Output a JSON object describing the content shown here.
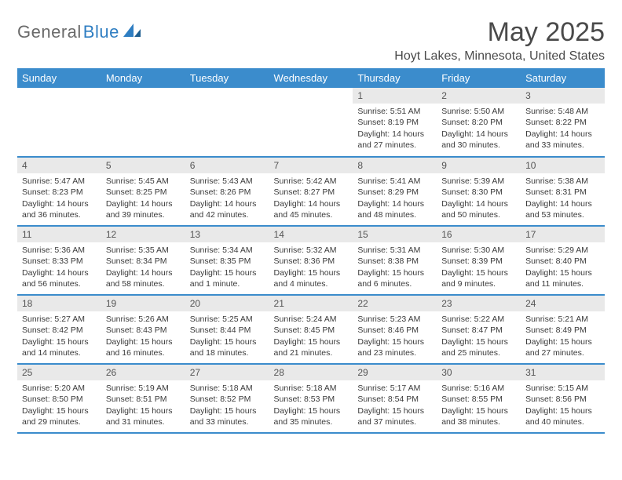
{
  "brand": {
    "part1": "General",
    "part2": "Blue"
  },
  "title": "May 2025",
  "location": "Hoyt Lakes, Minnesota, United States",
  "colors": {
    "header_bg": "#3b8ccc",
    "header_text": "#ffffff",
    "daynum_bg": "#e9e9e9",
    "text": "#3a3a3a",
    "brand_gray": "#6a6a6a",
    "brand_blue": "#2f7ec2",
    "page_bg": "#ffffff"
  },
  "weekdays": [
    "Sunday",
    "Monday",
    "Tuesday",
    "Wednesday",
    "Thursday",
    "Friday",
    "Saturday"
  ],
  "weeks": [
    [
      {
        "empty": true
      },
      {
        "empty": true
      },
      {
        "empty": true
      },
      {
        "empty": true
      },
      {
        "n": "1",
        "sr": "5:51 AM",
        "ss": "8:19 PM",
        "dl": "14 hours and 27 minutes."
      },
      {
        "n": "2",
        "sr": "5:50 AM",
        "ss": "8:20 PM",
        "dl": "14 hours and 30 minutes."
      },
      {
        "n": "3",
        "sr": "5:48 AM",
        "ss": "8:22 PM",
        "dl": "14 hours and 33 minutes."
      }
    ],
    [
      {
        "n": "4",
        "sr": "5:47 AM",
        "ss": "8:23 PM",
        "dl": "14 hours and 36 minutes."
      },
      {
        "n": "5",
        "sr": "5:45 AM",
        "ss": "8:25 PM",
        "dl": "14 hours and 39 minutes."
      },
      {
        "n": "6",
        "sr": "5:43 AM",
        "ss": "8:26 PM",
        "dl": "14 hours and 42 minutes."
      },
      {
        "n": "7",
        "sr": "5:42 AM",
        "ss": "8:27 PM",
        "dl": "14 hours and 45 minutes."
      },
      {
        "n": "8",
        "sr": "5:41 AM",
        "ss": "8:29 PM",
        "dl": "14 hours and 48 minutes."
      },
      {
        "n": "9",
        "sr": "5:39 AM",
        "ss": "8:30 PM",
        "dl": "14 hours and 50 minutes."
      },
      {
        "n": "10",
        "sr": "5:38 AM",
        "ss": "8:31 PM",
        "dl": "14 hours and 53 minutes."
      }
    ],
    [
      {
        "n": "11",
        "sr": "5:36 AM",
        "ss": "8:33 PM",
        "dl": "14 hours and 56 minutes."
      },
      {
        "n": "12",
        "sr": "5:35 AM",
        "ss": "8:34 PM",
        "dl": "14 hours and 58 minutes."
      },
      {
        "n": "13",
        "sr": "5:34 AM",
        "ss": "8:35 PM",
        "dl": "15 hours and 1 minute."
      },
      {
        "n": "14",
        "sr": "5:32 AM",
        "ss": "8:36 PM",
        "dl": "15 hours and 4 minutes."
      },
      {
        "n": "15",
        "sr": "5:31 AM",
        "ss": "8:38 PM",
        "dl": "15 hours and 6 minutes."
      },
      {
        "n": "16",
        "sr": "5:30 AM",
        "ss": "8:39 PM",
        "dl": "15 hours and 9 minutes."
      },
      {
        "n": "17",
        "sr": "5:29 AM",
        "ss": "8:40 PM",
        "dl": "15 hours and 11 minutes."
      }
    ],
    [
      {
        "n": "18",
        "sr": "5:27 AM",
        "ss": "8:42 PM",
        "dl": "15 hours and 14 minutes."
      },
      {
        "n": "19",
        "sr": "5:26 AM",
        "ss": "8:43 PM",
        "dl": "15 hours and 16 minutes."
      },
      {
        "n": "20",
        "sr": "5:25 AM",
        "ss": "8:44 PM",
        "dl": "15 hours and 18 minutes."
      },
      {
        "n": "21",
        "sr": "5:24 AM",
        "ss": "8:45 PM",
        "dl": "15 hours and 21 minutes."
      },
      {
        "n": "22",
        "sr": "5:23 AM",
        "ss": "8:46 PM",
        "dl": "15 hours and 23 minutes."
      },
      {
        "n": "23",
        "sr": "5:22 AM",
        "ss": "8:47 PM",
        "dl": "15 hours and 25 minutes."
      },
      {
        "n": "24",
        "sr": "5:21 AM",
        "ss": "8:49 PM",
        "dl": "15 hours and 27 minutes."
      }
    ],
    [
      {
        "n": "25",
        "sr": "5:20 AM",
        "ss": "8:50 PM",
        "dl": "15 hours and 29 minutes."
      },
      {
        "n": "26",
        "sr": "5:19 AM",
        "ss": "8:51 PM",
        "dl": "15 hours and 31 minutes."
      },
      {
        "n": "27",
        "sr": "5:18 AM",
        "ss": "8:52 PM",
        "dl": "15 hours and 33 minutes."
      },
      {
        "n": "28",
        "sr": "5:18 AM",
        "ss": "8:53 PM",
        "dl": "15 hours and 35 minutes."
      },
      {
        "n": "29",
        "sr": "5:17 AM",
        "ss": "8:54 PM",
        "dl": "15 hours and 37 minutes."
      },
      {
        "n": "30",
        "sr": "5:16 AM",
        "ss": "8:55 PM",
        "dl": "15 hours and 38 minutes."
      },
      {
        "n": "31",
        "sr": "5:15 AM",
        "ss": "8:56 PM",
        "dl": "15 hours and 40 minutes."
      }
    ]
  ],
  "labels": {
    "sunrise": "Sunrise: ",
    "sunset": "Sunset: ",
    "daylight": "Daylight: "
  }
}
